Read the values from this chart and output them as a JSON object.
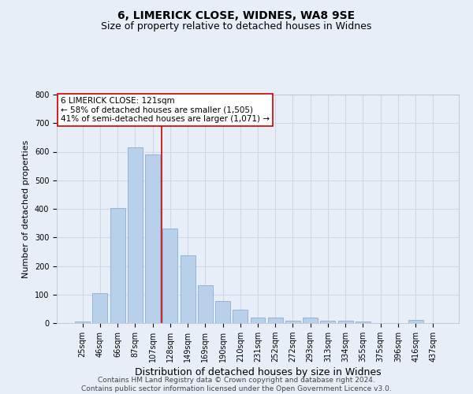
{
  "title1": "6, LIMERICK CLOSE, WIDNES, WA8 9SE",
  "title2": "Size of property relative to detached houses in Widnes",
  "xlabel": "Distribution of detached houses by size in Widnes",
  "ylabel": "Number of detached properties",
  "categories": [
    "25sqm",
    "46sqm",
    "66sqm",
    "87sqm",
    "107sqm",
    "128sqm",
    "149sqm",
    "169sqm",
    "190sqm",
    "210sqm",
    "231sqm",
    "252sqm",
    "272sqm",
    "293sqm",
    "313sqm",
    "334sqm",
    "355sqm",
    "375sqm",
    "396sqm",
    "416sqm",
    "437sqm"
  ],
  "values": [
    5,
    105,
    403,
    614,
    591,
    330,
    236,
    133,
    76,
    46,
    20,
    20,
    8,
    20,
    8,
    8,
    5,
    0,
    0,
    10,
    0
  ],
  "bar_color": "#b8d0ea",
  "bar_edge_color": "#8ab0d0",
  "background_color": "#e8eef8",
  "grid_color": "#d0d8e8",
  "vline_x_index": 5,
  "vline_color": "#cc0000",
  "annotation_text": "6 LIMERICK CLOSE: 121sqm\n← 58% of detached houses are smaller (1,505)\n41% of semi-detached houses are larger (1,071) →",
  "annotation_box_color": "#ffffff",
  "annotation_box_edge_color": "#cc0000",
  "footnote": "Contains HM Land Registry data © Crown copyright and database right 2024.\nContains public sector information licensed under the Open Government Licence v3.0.",
  "ylim": [
    0,
    800
  ],
  "yticks": [
    0,
    100,
    200,
    300,
    400,
    500,
    600,
    700,
    800
  ],
  "title_fontsize": 10,
  "subtitle_fontsize": 9,
  "xlabel_fontsize": 9,
  "ylabel_fontsize": 8,
  "tick_fontsize": 7,
  "annotation_fontsize": 7.5,
  "footnote_fontsize": 6.5
}
